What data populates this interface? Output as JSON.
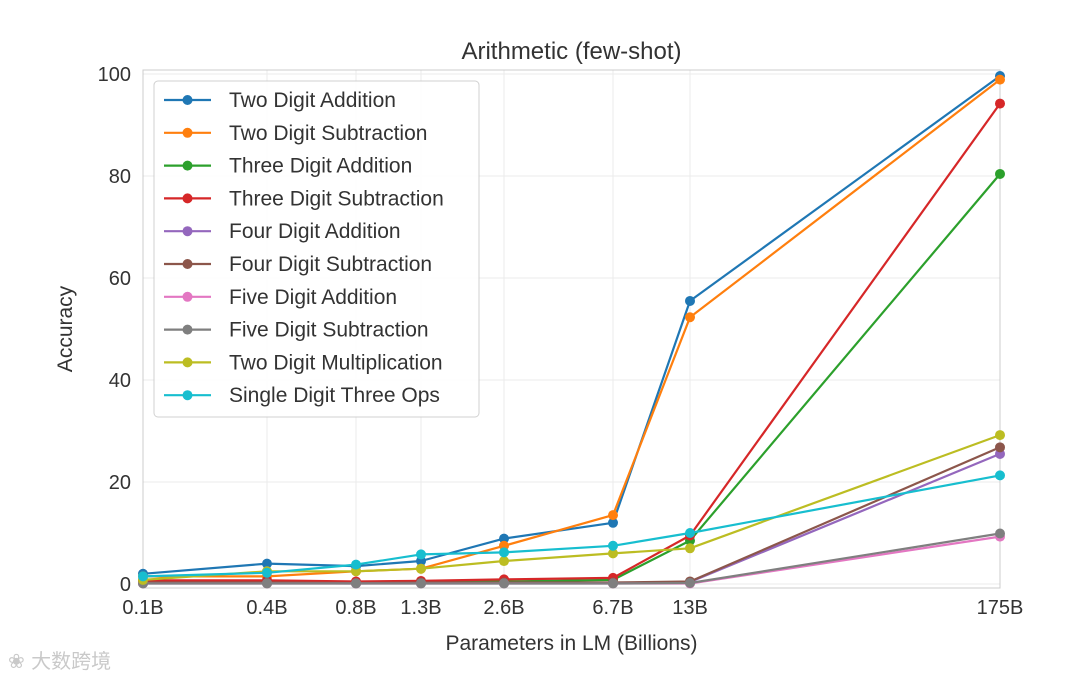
{
  "chart_data": {
    "type": "line",
    "title": "Arithmetic (few-shot)",
    "xlabel": "Parameters in LM (Billions)",
    "ylabel": "Accuracy",
    "categories": [
      "0.1B",
      "0.4B",
      "0.8B",
      "1.3B",
      "2.6B",
      "6.7B",
      "13B",
      "175B"
    ],
    "ylim": [
      0,
      100
    ],
    "yticks": [
      0,
      20,
      40,
      60,
      80,
      100
    ],
    "grid": true,
    "legend_position": "upper-left",
    "series": [
      {
        "name": "Two Digit Addition",
        "color": "#1f77b4",
        "values": [
          2.0,
          4.0,
          3.5,
          4.5,
          8.9,
          12.0,
          55.5,
          99.6
        ]
      },
      {
        "name": "Two Digit Subtraction",
        "color": "#ff7f0e",
        "values": [
          1.5,
          1.5,
          2.5,
          3.0,
          7.5,
          13.5,
          52.3,
          98.9
        ]
      },
      {
        "name": "Three Digit Addition",
        "color": "#2ca02c",
        "values": [
          0.5,
          0.5,
          0.3,
          0.4,
          0.5,
          0.8,
          8.5,
          80.4
        ]
      },
      {
        "name": "Three Digit Subtraction",
        "color": "#d62728",
        "values": [
          0.7,
          0.7,
          0.5,
          0.6,
          0.9,
          1.2,
          9.5,
          94.2
        ]
      },
      {
        "name": "Four Digit Addition",
        "color": "#9467bd",
        "values": [
          0.2,
          0.2,
          0.1,
          0.2,
          0.2,
          0.2,
          0.4,
          25.5
        ]
      },
      {
        "name": "Four Digit Subtraction",
        "color": "#8c564b",
        "values": [
          0.3,
          0.3,
          0.2,
          0.3,
          0.3,
          0.3,
          0.5,
          26.8
        ]
      },
      {
        "name": "Five Digit Addition",
        "color": "#e377c2",
        "values": [
          0.1,
          0.1,
          0.1,
          0.1,
          0.1,
          0.1,
          0.1,
          9.3
        ]
      },
      {
        "name": "Five Digit Subtraction",
        "color": "#7f7f7f",
        "values": [
          0.1,
          0.1,
          0.1,
          0.1,
          0.1,
          0.1,
          0.2,
          9.9
        ]
      },
      {
        "name": "Two Digit Multiplication",
        "color": "#bcbd22",
        "values": [
          0.8,
          2.5,
          2.5,
          3.0,
          4.5,
          6.0,
          7.0,
          29.2
        ]
      },
      {
        "name": "Single Digit Three Ops",
        "color": "#17becf",
        "values": [
          1.5,
          2.2,
          3.8,
          5.8,
          6.2,
          7.5,
          10.0,
          21.3
        ]
      }
    ]
  },
  "watermark": "大数跨境"
}
